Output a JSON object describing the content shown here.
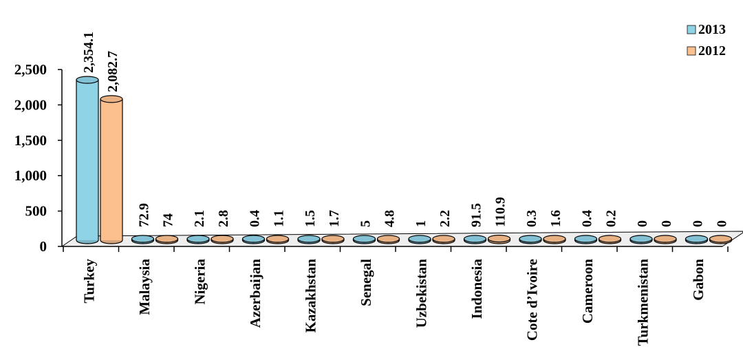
{
  "chart_data": {
    "type": "bar",
    "categories": [
      "Turkey",
      "Malaysia",
      "Nigeria",
      "Azerbaijan",
      "Kazakhstan",
      "Senegal",
      "Uzbekistan",
      "Indonesia",
      "Cote d’Ivoire",
      "Cameroon",
      "Turkmenistan",
      "Gabon"
    ],
    "series": [
      {
        "name": "2013",
        "color": "#8ed3e6",
        "values": [
          2354.1,
          72.9,
          2.1,
          0.4,
          1.5,
          5,
          1,
          91.5,
          0.3,
          0.4,
          0,
          0
        ],
        "labels": [
          "2,354.1",
          "72.9",
          "2.1",
          "0.4",
          "1.5",
          "5",
          "1",
          "91.5",
          "0.3",
          "0.4",
          "0",
          "0"
        ]
      },
      {
        "name": "2012",
        "color": "#fbc08e",
        "values": [
          2082.7,
          74,
          2.8,
          1.1,
          1.7,
          4.8,
          2.2,
          110.9,
          1.6,
          0.2,
          0,
          0
        ],
        "labels": [
          "2,082.7",
          "74",
          "2.8",
          "1.1",
          "1.7",
          "4.8",
          "2.2",
          "110.9",
          "1.6",
          "0.2",
          "0",
          "0"
        ]
      }
    ],
    "yticks": [
      "0",
      "500",
      "1,000",
      "1,500",
      "2,000",
      "2,500"
    ],
    "ylim": [
      0,
      2500
    ],
    "legend_position": "top-right",
    "style": "3d-cylinder",
    "grid": false
  }
}
